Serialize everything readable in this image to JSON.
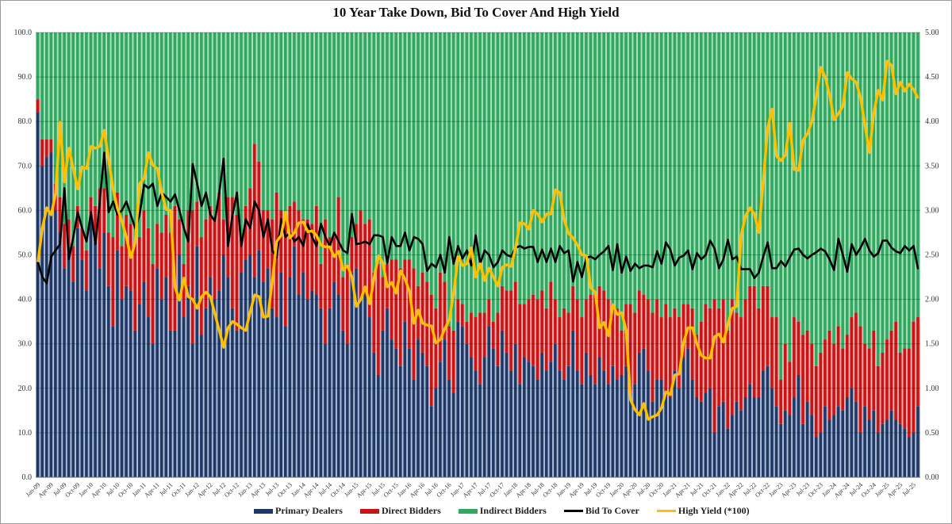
{
  "chart_data": {
    "type": "bar+line",
    "title": "10 Year Take Down, Bid To Cover And High Yield",
    "start_month": "Jan-09",
    "x_tick_labels": [
      "Jan-09",
      "Apr-09",
      "Jul-09",
      "Oct-09",
      "Jan-10",
      "Apr-10",
      "Jul-10",
      "Oct-10",
      "Jan-11",
      "Apr-11",
      "Jul-11",
      "Oct-11",
      "Jan-12",
      "Apr-12",
      "Jul-12",
      "Oct-12",
      "Jan-13",
      "Apr-13",
      "Jul-13",
      "Oct-13",
      "Jan-14",
      "Apr-14",
      "Jul-14",
      "Oct-14",
      "Jan-15",
      "Apr-15",
      "Jul-15",
      "Oct-15",
      "Jan-16",
      "Apr-16",
      "Jul-16",
      "Oct-16",
      "Jan-17",
      "Apr-17",
      "Jul-17",
      "Oct-17",
      "Jan-18",
      "Apr-18",
      "Jul-18",
      "Oct-18",
      "Jan-19",
      "Apr-19",
      "Jul-19",
      "Oct-19",
      "Jan-20",
      "Apr-20",
      "Jul-20",
      "Oct-20",
      "Jan-21",
      "Apr-21",
      "Jul-21",
      "Oct-21",
      "Jan-22",
      "Apr-22",
      "Jul-22",
      "Oct-22",
      "Jan-23",
      "Apr-23",
      "Jul-23",
      "Oct-23",
      "Jan-24",
      "Apr-24",
      "Jul-24",
      "Oct-24",
      "Jan-25",
      "Apr-25",
      "Jul-25"
    ],
    "left_axis": {
      "range": [
        0,
        100
      ],
      "ticks": [
        "0.0",
        "10.0",
        "20.0",
        "30.0",
        "40.0",
        "50.0",
        "60.0",
        "70.0",
        "80.0",
        "90.0",
        "100.0"
      ]
    },
    "right_axis": {
      "range": [
        0,
        5
      ],
      "ticks": [
        "0.00",
        "0.50",
        "1.00",
        "1.50",
        "2.00",
        "2.50",
        "3.00",
        "3.50",
        "4.00",
        "4.50",
        "5.00"
      ]
    },
    "grid": true,
    "legend_position": "bottom",
    "colors": {
      "primary": "#1f3864",
      "direct": "#c81414",
      "indirect": "#2fa860",
      "btc": "#000000",
      "yield": "#ffc000"
    },
    "series": [
      {
        "name": "Primary Dealers",
        "kind": "stacked-bar",
        "axis": "left",
        "values": [
          82,
          70,
          72,
          73,
          60,
          55,
          47,
          52,
          44,
          56,
          49,
          42,
          58,
          53,
          47,
          55,
          43,
          34,
          51,
          40,
          43,
          42,
          33,
          39,
          44,
          36,
          30,
          47,
          40,
          45,
          33,
          33,
          50,
          36,
          43,
          30,
          52,
          32,
          38,
          45,
          40,
          42,
          50,
          45,
          38,
          33,
          46,
          49,
          50,
          45,
          51,
          44,
          47,
          38,
          36,
          46,
          34,
          45,
          52,
          41,
          46,
          40,
          42,
          41,
          38,
          30,
          38,
          44,
          41,
          33,
          30,
          46,
          47,
          40,
          41,
          36,
          28,
          23,
          33,
          38,
          31,
          29,
          25,
          35,
          29,
          22,
          31,
          28,
          25,
          16,
          20,
          26,
          31,
          22,
          19,
          35,
          34,
          30,
          27,
          24,
          21,
          27,
          34,
          29,
          25,
          33,
          28,
          24,
          30,
          21,
          27,
          26,
          25,
          22,
          28,
          24,
          26,
          30,
          24,
          22,
          25,
          33,
          24,
          21,
          28,
          23,
          21,
          27,
          24,
          21,
          25,
          22,
          23,
          25,
          19,
          21,
          28,
          29,
          24,
          17,
          22,
          22,
          19,
          18,
          24,
          20,
          27,
          29,
          22,
          18,
          17,
          19,
          20,
          10,
          16,
          17,
          11,
          14,
          17,
          15,
          18,
          21,
          18,
          18,
          24,
          25,
          20,
          16,
          12,
          15,
          14,
          18,
          23,
          12,
          17,
          14,
          9,
          10,
          16,
          13,
          14,
          16,
          15,
          18,
          20,
          17,
          10,
          16,
          13,
          15,
          10,
          12,
          13,
          15,
          13,
          12,
          11,
          9,
          10,
          16
        ]
      },
      {
        "name": "Direct Bidders",
        "kind": "stacked-bar",
        "axis": "left",
        "values": [
          3,
          6,
          4,
          3,
          6,
          8,
          10,
          6,
          8,
          5,
          7,
          9,
          5,
          8,
          18,
          10,
          12,
          20,
          13,
          12,
          16,
          15,
          20,
          15,
          16,
          20,
          18,
          10,
          15,
          14,
          22,
          28,
          8,
          12,
          17,
          30,
          10,
          22,
          20,
          16,
          18,
          22,
          8,
          18,
          25,
          26,
          8,
          12,
          15,
          30,
          20,
          16,
          13,
          20,
          28,
          14,
          24,
          16,
          10,
          19,
          12,
          18,
          15,
          20,
          10,
          28,
          16,
          10,
          22,
          12,
          18,
          8,
          10,
          20,
          16,
          22,
          18,
          25,
          12,
          10,
          18,
          20,
          22,
          14,
          20,
          25,
          12,
          18,
          19,
          25,
          18,
          20,
          13,
          12,
          14,
          5,
          5,
          5,
          10,
          12,
          16,
          10,
          6,
          6,
          12,
          10,
          14,
          18,
          14,
          18,
          12,
          14,
          16,
          18,
          14,
          14,
          18,
          10,
          12,
          16,
          12,
          10,
          16,
          15,
          12,
          18,
          20,
          16,
          18,
          19,
          14,
          16,
          10,
          14,
          20,
          16,
          14,
          12,
          16,
          20,
          18,
          14,
          20,
          18,
          14,
          16,
          12,
          10,
          16,
          14,
          18,
          20,
          18,
          30,
          22,
          23,
          22,
          26,
          20,
          21,
          22,
          22,
          25,
          20,
          19,
          18,
          16,
          20,
          10,
          15,
          12,
          18,
          12,
          20,
          16,
          16,
          16,
          18,
          15,
          20,
          16,
          18,
          14,
          14,
          16,
          20,
          24,
          14,
          16,
          18,
          15,
          16,
          18,
          18,
          22,
          16,
          18,
          20,
          25,
          20
        ]
      },
      {
        "name": "Indirect Bidders",
        "kind": "stacked-bar",
        "axis": "left",
        "values": "remainder to 100"
      },
      {
        "name": "Bid To Cover",
        "kind": "line",
        "axis": "right",
        "values": [
          2.42,
          2.25,
          2.18,
          2.48,
          2.55,
          2.62,
          3.25,
          2.45,
          2.7,
          2.98,
          2.8,
          2.65,
          2.98,
          2.62,
          3.1,
          3.65,
          2.98,
          3.1,
          2.95,
          3.0,
          3.1,
          2.95,
          2.8,
          2.95,
          3.29,
          3.25,
          3.3,
          3.05,
          3.2,
          3.15,
          3.1,
          3.18,
          3.0,
          2.8,
          2.65,
          3.52,
          3.3,
          3.05,
          3.2,
          2.95,
          2.88,
          3.2,
          3.58,
          2.6,
          2.95,
          3.2,
          2.6,
          2.9,
          2.8,
          3.1,
          3.0,
          2.7,
          2.9,
          2.55,
          2.47,
          2.9,
          2.7,
          2.75,
          2.65,
          2.7,
          2.6,
          2.85,
          2.7,
          2.6,
          2.85,
          2.7,
          2.6,
          2.75,
          2.65,
          2.55,
          2.52,
          2.96,
          2.62,
          2.63,
          2.65,
          2.62,
          2.72,
          2.72,
          2.7,
          2.41,
          2.7,
          2.6,
          2.6,
          2.75,
          2.55,
          2.7,
          2.68,
          2.62,
          2.32,
          2.4,
          2.36,
          2.5,
          2.3,
          2.7,
          2.4,
          2.6,
          2.46,
          2.55,
          2.38,
          2.72,
          2.4,
          2.55,
          2.5,
          2.36,
          2.42,
          2.55,
          2.5,
          2.48,
          2.58,
          2.6,
          2.57,
          2.59,
          2.59,
          2.42,
          2.56,
          2.42,
          2.57,
          2.42,
          2.6,
          2.52,
          2.55,
          2.2,
          2.42,
          2.25,
          2.47,
          2.48,
          2.45,
          2.5,
          2.54,
          2.6,
          2.33,
          2.62,
          2.3,
          2.48,
          2.32,
          2.4,
          2.35,
          2.38,
          2.38,
          2.36,
          2.54,
          2.4,
          2.64,
          2.56,
          2.38,
          2.47,
          2.49,
          2.55,
          2.34,
          2.52,
          2.45,
          2.5,
          2.66,
          2.57,
          2.35,
          2.45,
          2.67,
          2.45,
          2.48,
          2.34,
          2.34,
          2.34,
          2.24,
          2.3,
          2.48,
          2.64,
          2.35,
          2.35,
          2.43,
          2.37,
          2.47,
          2.56,
          2.57,
          2.5,
          2.46,
          2.5,
          2.53,
          2.57,
          2.54,
          2.45,
          2.33,
          2.68,
          2.5,
          2.31,
          2.62,
          2.5,
          2.58,
          2.68,
          2.55,
          2.48,
          2.52,
          2.66,
          2.66,
          2.58,
          2.54,
          2.52,
          2.6,
          2.55,
          2.6,
          2.34
        ]
      },
      {
        "name": "High Yield (*100)",
        "kind": "line",
        "axis": "right",
        "values": [
          2.42,
          2.8,
          3.03,
          2.95,
          3.19,
          3.99,
          3.32,
          3.7,
          3.47,
          3.24,
          3.49,
          3.47,
          3.72,
          3.7,
          3.72,
          3.9,
          3.57,
          3.24,
          3.02,
          2.88,
          2.7,
          2.47,
          2.64,
          3.3,
          3.36,
          3.65,
          3.51,
          3.47,
          3.2,
          3.01,
          3.0,
          2.14,
          1.99,
          2.24,
          2.03,
          2.0,
          1.9,
          2.03,
          2.08,
          2.03,
          1.84,
          1.65,
          1.46,
          1.68,
          1.75,
          1.72,
          1.68,
          1.65,
          1.86,
          2.05,
          2.03,
          1.8,
          1.81,
          2.21,
          2.65,
          2.72,
          2.98,
          2.69,
          2.75,
          2.86,
          2.87,
          2.76,
          2.77,
          2.72,
          2.61,
          2.59,
          2.59,
          2.48,
          2.54,
          2.33,
          2.38,
          2.25,
          1.92,
          2.0,
          2.14,
          1.95,
          2.24,
          2.49,
          2.41,
          2.14,
          2.19,
          2.07,
          2.32,
          2.23,
          2.09,
          1.73,
          1.88,
          1.73,
          1.71,
          1.7,
          1.51,
          1.55,
          1.67,
          1.77,
          2.07,
          2.48,
          2.38,
          2.4,
          2.58,
          2.25,
          2.4,
          2.21,
          2.35,
          2.25,
          2.15,
          2.36,
          2.39,
          2.37,
          2.58,
          2.86,
          2.85,
          2.79,
          3.0,
          2.96,
          2.87,
          2.96,
          2.96,
          3.23,
          3.2,
          2.89,
          2.74,
          2.69,
          2.61,
          2.5,
          2.49,
          2.13,
          2.08,
          1.68,
          1.74,
          1.59,
          1.94,
          1.83,
          1.85,
          1.65,
          0.87,
          0.76,
          0.7,
          0.83,
          0.65,
          0.68,
          0.7,
          0.78,
          0.96,
          0.93,
          1.15,
          1.16,
          1.52,
          1.68,
          1.68,
          1.5,
          1.37,
          1.34,
          1.34,
          1.58,
          1.61,
          1.52,
          1.72,
          1.9,
          1.92,
          2.72,
          2.94,
          3.03,
          2.96,
          2.75,
          3.33,
          3.93,
          4.14,
          3.61,
          3.56,
          3.62,
          3.98,
          3.46,
          3.45,
          3.79,
          3.86,
          4.0,
          4.29,
          4.61,
          4.5,
          4.3,
          4.02,
          4.09,
          4.17,
          4.55,
          4.48,
          4.44,
          4.27,
          3.96,
          3.65,
          4.1,
          4.35,
          4.24,
          4.68,
          4.63,
          4.31,
          4.44,
          4.34,
          4.42,
          4.36,
          4.26
        ]
      }
    ]
  }
}
